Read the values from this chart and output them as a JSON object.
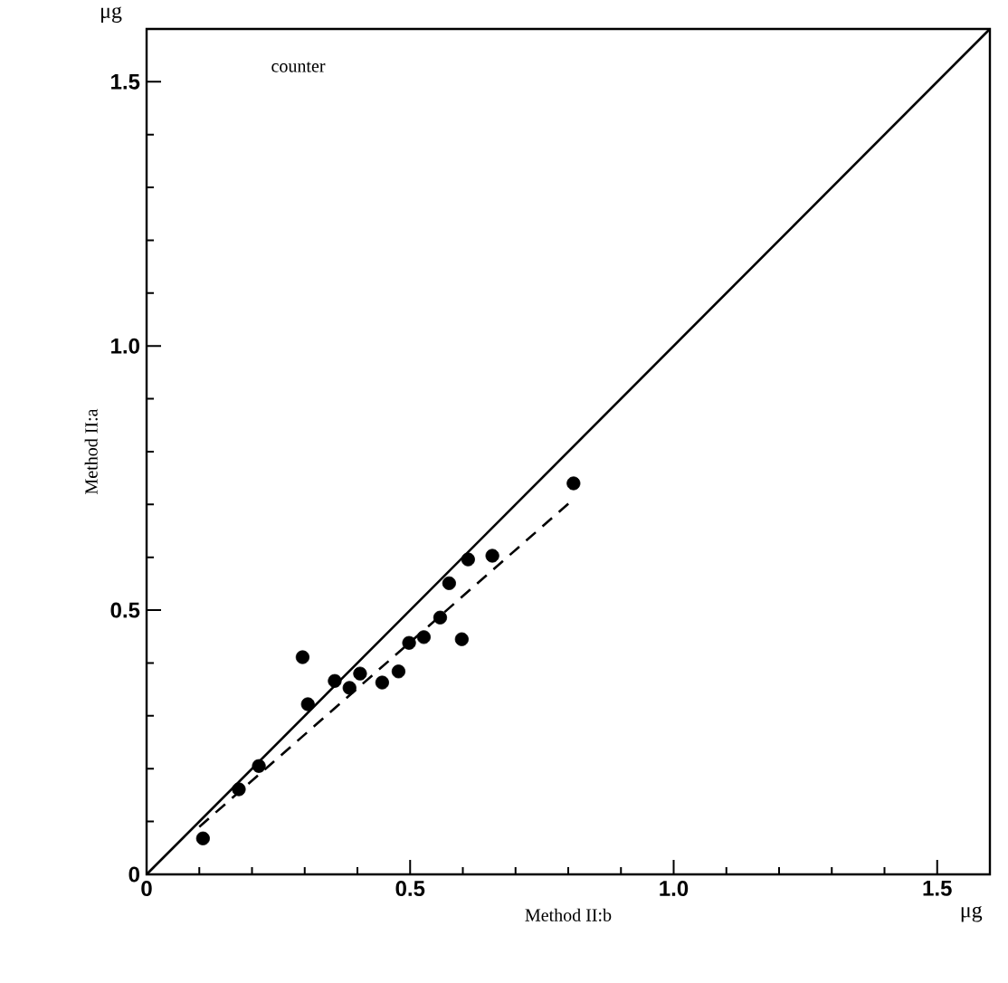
{
  "chart_data": {
    "type": "scatter",
    "xlabel": "Method II:b",
    "ylabel": "Method II:a",
    "annotations": [
      "counter",
      "μg",
      "μg"
    ],
    "xlim": [
      0,
      1.6
    ],
    "ylim": [
      0,
      1.6
    ],
    "xticks": [
      0,
      0.5,
      {
        "value": 1.0,
        "label": "1.0"
      },
      1.5
    ],
    "yticks": [
      0,
      0.5,
      {
        "value": 1.0,
        "label": "1.0"
      },
      1.5
    ],
    "grid": false,
    "series": [
      {
        "color": "#000000",
        "marker": "circle",
        "x": [
          0.107,
          0.175,
          0.213,
          0.296,
          0.306,
          0.357,
          0.385,
          0.405,
          0.447,
          0.478,
          0.498,
          0.526,
          0.557,
          0.598,
          0.574,
          0.61,
          0.656,
          0.81
        ],
        "values": [
          0.068,
          0.161,
          0.205,
          0.411,
          0.322,
          0.366,
          0.353,
          0.38,
          0.363,
          0.384,
          0.438,
          0.449,
          0.486,
          0.445,
          0.551,
          0.596,
          0.603,
          0.74
        ]
      },
      {
        "type": "line",
        "color": "#000000",
        "line_style": "solid",
        "marker": "none",
        "x": [
          0,
          1.6
        ],
        "values": [
          0,
          1.6
        ]
      },
      {
        "type": "line",
        "color": "#000000",
        "line_style": "dashed",
        "marker": "none",
        "x": [
          0.1,
          0.81
        ],
        "values": [
          0.09,
          0.71
        ]
      }
    ]
  }
}
